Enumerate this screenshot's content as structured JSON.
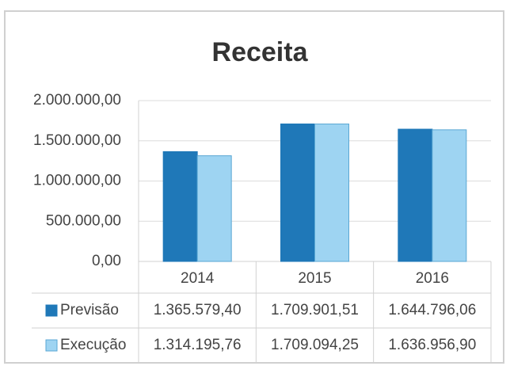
{
  "chart_data": {
    "type": "bar",
    "title": "Receita",
    "categories": [
      "2014",
      "2015",
      "2016"
    ],
    "series": [
      {
        "name": "Previsão",
        "color": "#1f78b8",
        "values": [
          1365579.4,
          1709901.51,
          1644796.06
        ],
        "value_labels": [
          "1.365.579,40",
          "1.709.901,51",
          "1.644.796,06"
        ]
      },
      {
        "name": "Execução",
        "color": "#9ed4f2",
        "values": [
          1314195.76,
          1709094.25,
          1636956.9
        ],
        "value_labels": [
          "1.314.195,76",
          "1.709.094,25",
          "1.636.956,90"
        ]
      }
    ],
    "ylim": [
      0,
      2000000
    ],
    "yticks": [
      {
        "value": 0,
        "label": "0,00"
      },
      {
        "value": 500000,
        "label": "500.000,00"
      },
      {
        "value": 1000000,
        "label": "1.000.000,00"
      },
      {
        "value": 1500000,
        "label": "1.500.000,00"
      },
      {
        "value": 2000000,
        "label": "2.000.000,00"
      }
    ],
    "grid": true
  }
}
